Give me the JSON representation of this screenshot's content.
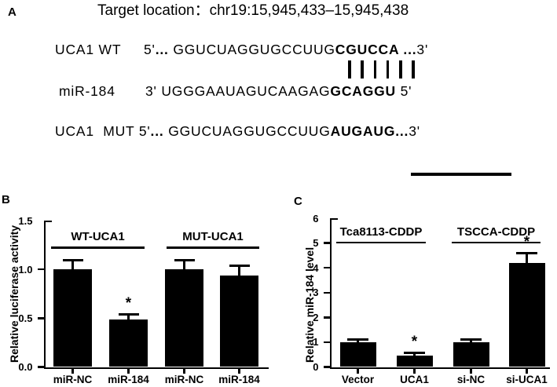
{
  "figure": {
    "background": "#ffffff",
    "ink": "#000000"
  },
  "panelA": {
    "letter": "A",
    "title": "Target location：chr19:15,945,433–15,945,438",
    "rows": [
      {
        "name": "uca1-wt",
        "label": "UCA1 WT",
        "segments": [
          {
            "text": "5'",
            "bold": false
          },
          {
            "text": "... ",
            "bold": true
          },
          {
            "text": "GGUCUAGGUGCCUUG",
            "bold": false
          },
          {
            "text": "CGUCCA",
            "bold": true
          },
          {
            "text": " ...",
            "bold": true
          },
          {
            "text": "3'",
            "bold": false
          }
        ]
      },
      {
        "name": "mir-184",
        "label": "miR-184",
        "segments": [
          {
            "text": "3' ",
            "bold": false
          },
          {
            "text": "UGGGAAUAGUCAAGAG",
            "bold": false
          },
          {
            "text": "GCAGGU",
            "bold": true
          },
          {
            "text": " 5'",
            "bold": false
          }
        ]
      },
      {
        "name": "uca1-mut",
        "label": "",
        "segments": [
          {
            "text": "UCA1  MUT 5'",
            "bold": false
          },
          {
            "text": "...",
            "bold": true
          },
          {
            "text": " GGUCUAGGUGCCUUG",
            "bold": false
          },
          {
            "text": "AUGAUG...",
            "bold": true
          },
          {
            "text": "3'",
            "bold": false
          }
        ]
      }
    ],
    "pairing_bar_count": 6
  },
  "chart_data": [
    {
      "panel_letter": "B",
      "type": "bar",
      "title": "",
      "ylabel": "Relative luciferase activity",
      "xlabel": "",
      "ylim": [
        0,
        1.5
      ],
      "yticks": [
        0,
        0.5,
        1.0,
        1.5
      ],
      "ytick_labels": [
        "0.0",
        "0.5",
        "1.0",
        "1.5"
      ],
      "categories": [
        "miR-NC",
        "miR-184",
        "miR-NC",
        "miR-184"
      ],
      "values": [
        1.0,
        0.49,
        1.0,
        0.94
      ],
      "errors": [
        0.09,
        0.05,
        0.09,
        0.1
      ],
      "significance": [
        "",
        "*",
        "",
        ""
      ],
      "groups": [
        {
          "label": "WT-UCA1",
          "span": [
            0,
            1
          ]
        },
        {
          "label": "MUT-UCA1",
          "span": [
            2,
            3
          ]
        }
      ],
      "bar_color": "#000000",
      "grid": false,
      "legend": null
    },
    {
      "panel_letter": "C",
      "type": "bar",
      "title": "",
      "ylabel": "Relative miR-184 level",
      "xlabel": "",
      "ylim": [
        0,
        6
      ],
      "yticks": [
        0,
        1,
        2,
        3,
        4,
        5,
        6
      ],
      "ytick_labels": [
        "0",
        "1",
        "2",
        "3",
        "4",
        "5",
        "6"
      ],
      "categories": [
        "Vector",
        "UCA1",
        "si-NC",
        "si-UCA1"
      ],
      "values": [
        1.0,
        0.46,
        1.0,
        4.2
      ],
      "errors": [
        0.12,
        0.12,
        0.12,
        0.4
      ],
      "significance": [
        "",
        "*",
        "",
        "*"
      ],
      "groups": [
        {
          "label": "Tca8113-CDDP",
          "span": [
            0,
            1
          ]
        },
        {
          "label": "TSCCA-CDDP",
          "span": [
            2,
            3
          ]
        }
      ],
      "bar_color": "#000000",
      "grid": false,
      "legend": null
    }
  ]
}
